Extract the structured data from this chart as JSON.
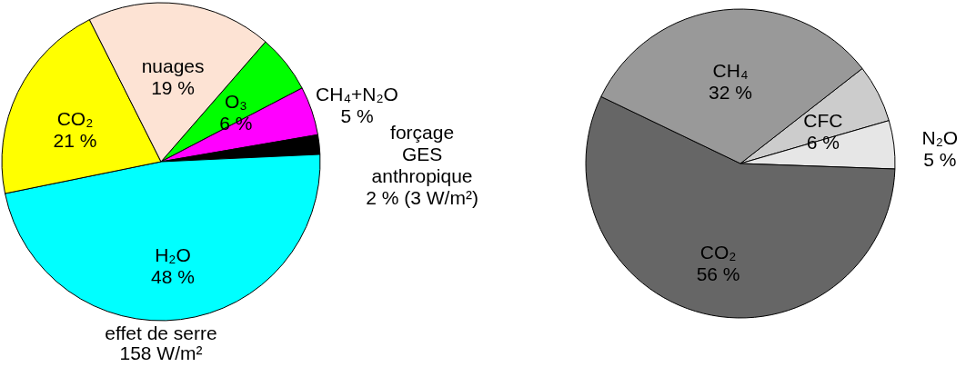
{
  "chart_data": [
    {
      "type": "pie",
      "categories": [
        "O₃",
        "CH₄+N₂O",
        "forçage\nGES\nanthropique",
        "H₂O",
        "CO₂",
        "nuages"
      ],
      "values": [
        6,
        5,
        2,
        48,
        21,
        19
      ],
      "colors": [
        "#00ff00",
        "#ff00ff",
        "#000000",
        "#00ffff",
        "#ffff00",
        "#fde3d4"
      ],
      "value_labels": [
        "6 %",
        "5 %",
        "2 % (3 W/m²)",
        "48 %",
        "21 %",
        "19 %"
      ],
      "annotations": [
        "effet de serre\n158 W/m²"
      ]
    },
    {
      "type": "pie",
      "categories": [
        "CFC",
        "N₂O",
        "CO₂",
        "CH₄"
      ],
      "values": [
        6,
        5,
        56,
        32
      ],
      "colors": [
        "#cccccc",
        "#e6e6e6",
        "#666666",
        "#999999"
      ],
      "value_labels": [
        "6 %",
        "5 %",
        "56 %",
        "32 %"
      ]
    }
  ]
}
